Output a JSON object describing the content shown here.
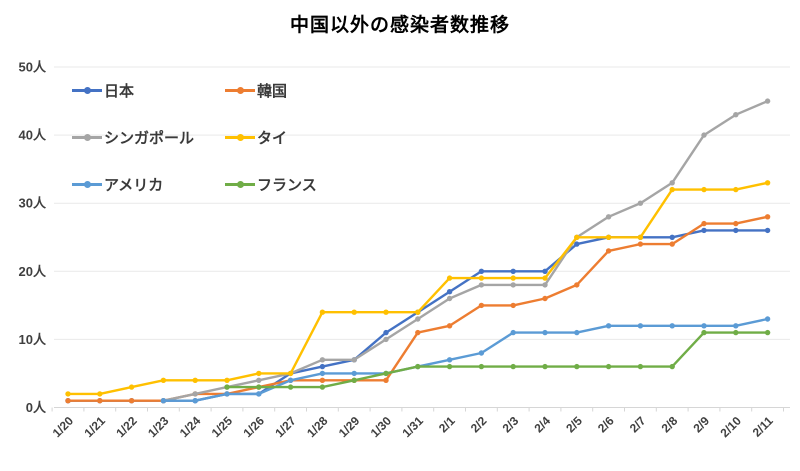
{
  "chart_data": {
    "type": "line",
    "title": "中国以外の感染者数推移",
    "categories": [
      "1/20",
      "1/21",
      "1/22",
      "1/23",
      "1/24",
      "1/25",
      "1/26",
      "1/27",
      "1/28",
      "1/29",
      "1/30",
      "1/31",
      "2/1",
      "2/2",
      "2/3",
      "2/4",
      "2/5",
      "2/6",
      "2/7",
      "2/8",
      "2/9",
      "2/10",
      "2/11"
    ],
    "series": [
      {
        "name": "日本",
        "color": "#4472C4",
        "values": [
          1,
          1,
          1,
          1,
          1,
          2,
          2,
          5,
          6,
          7,
          11,
          14,
          17,
          20,
          20,
          20,
          24,
          25,
          25,
          25,
          26,
          26,
          26
        ]
      },
      {
        "name": "韓国",
        "color": "#ED7D31",
        "values": [
          1,
          1,
          1,
          1,
          2,
          2,
          3,
          4,
          4,
          4,
          4,
          11,
          12,
          15,
          15,
          16,
          18,
          23,
          24,
          24,
          27,
          27,
          28
        ]
      },
      {
        "name": "シンガポール",
        "color": "#A5A5A5",
        "values": [
          null,
          null,
          null,
          1,
          2,
          3,
          4,
          5,
          7,
          7,
          10,
          13,
          16,
          18,
          18,
          18,
          25,
          28,
          30,
          33,
          40,
          43,
          45
        ]
      },
      {
        "name": "タイ",
        "color": "#FFC000",
        "values": [
          2,
          2,
          3,
          4,
          4,
          4,
          5,
          5,
          14,
          14,
          14,
          14,
          19,
          19,
          19,
          19,
          25,
          25,
          25,
          32,
          32,
          32,
          33
        ]
      },
      {
        "name": "アメリカ",
        "color": "#5B9BD5",
        "values": [
          null,
          null,
          null,
          1,
          1,
          2,
          2,
          4,
          5,
          5,
          5,
          6,
          7,
          8,
          11,
          11,
          11,
          12,
          12,
          12,
          12,
          12,
          13
        ]
      },
      {
        "name": "フランス",
        "color": "#70AD47",
        "values": [
          null,
          null,
          null,
          null,
          null,
          3,
          3,
          3,
          3,
          4,
          5,
          6,
          6,
          6,
          6,
          6,
          6,
          6,
          6,
          6,
          11,
          11,
          11
        ]
      }
    ],
    "ylim": [
      0,
      50
    ],
    "y_tick_step": 10,
    "y_unit_suffix": "人",
    "grid": true,
    "legend_position": "top-left",
    "marker": "circle",
    "colors": {
      "gridline": "#E9E9E9",
      "axis_line": "#D6D6D6",
      "tick_label": "#404040",
      "title": "#000000"
    }
  }
}
